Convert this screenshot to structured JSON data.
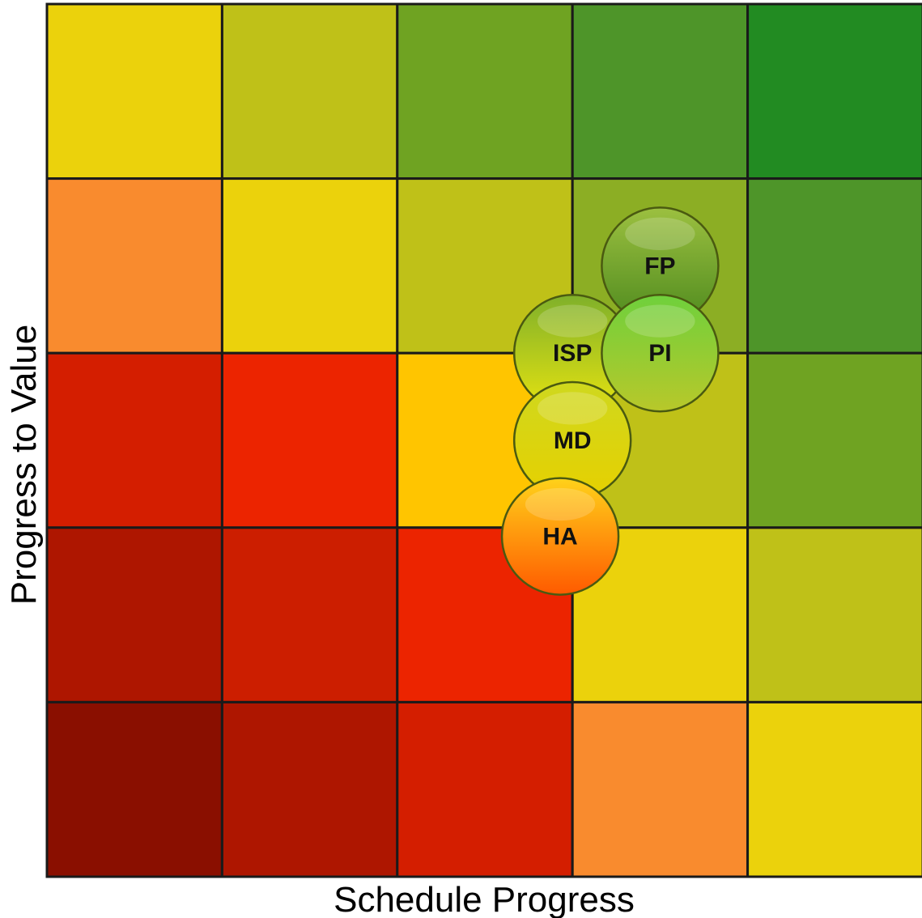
{
  "chart_data": {
    "type": "heatmap",
    "title": "",
    "xlabel": "Schedule Progress",
    "ylabel": "Progress to Value",
    "grid_size": 5,
    "cell_colors": [
      [
        "#EBD20C",
        "#BFC118",
        "#6FA322",
        "#4E9529",
        "#228B22"
      ],
      [
        "#F98B2E",
        "#EBD20C",
        "#BFC118",
        "#8CAE24",
        "#4E9529"
      ],
      [
        "#D41E00",
        "#EC2400",
        "#FFC500",
        "#BFC118",
        "#6FA322"
      ],
      [
        "#AE1600",
        "#CC1E00",
        "#EC2400",
        "#EBD20C",
        "#BFC118"
      ],
      [
        "#8A0F00",
        "#AE1600",
        "#D41E00",
        "#F98B2E",
        "#EBD20C"
      ]
    ],
    "points": [
      {
        "label": "FP",
        "x": 3.5,
        "y": 3.5,
        "color_top": "#9CC040",
        "color_bottom": "#4E8A1E"
      },
      {
        "label": "ISP",
        "x": 3.0,
        "y": 3.0,
        "color_top": "#7FB02A",
        "color_bottom": "#E6E310"
      },
      {
        "label": "PI",
        "x": 3.5,
        "y": 3.0,
        "color_top": "#6FD03C",
        "color_bottom": "#B8C82A"
      },
      {
        "label": "MD",
        "x": 3.0,
        "y": 2.5,
        "color_top": "#CFD81E",
        "color_bottom": "#E6D000"
      },
      {
        "label": "HA",
        "x": 2.93,
        "y": 1.95,
        "color_top": "#FFD21A",
        "color_bottom": "#FF5A00"
      }
    ]
  }
}
